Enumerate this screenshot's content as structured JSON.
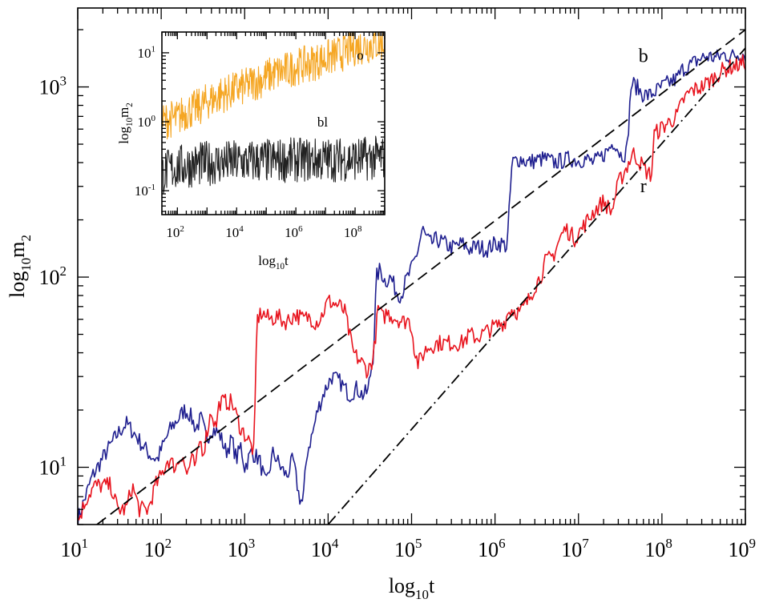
{
  "chart_data": [
    {
      "type": "line",
      "id": "main",
      "xscale": "log",
      "yscale": "log",
      "xlabel": "log10t",
      "ylabel": "log10m2",
      "xlim": [
        10,
        1000000000
      ],
      "ylim": [
        5,
        2600
      ],
      "x_ticks": [
        {
          "mantissa": "10",
          "exp": "1"
        },
        {
          "mantissa": "10",
          "exp": "2"
        },
        {
          "mantissa": "10",
          "exp": "3"
        },
        {
          "mantissa": "10",
          "exp": "4"
        },
        {
          "mantissa": "10",
          "exp": "5"
        },
        {
          "mantissa": "10",
          "exp": "6"
        },
        {
          "mantissa": "10",
          "exp": "7"
        },
        {
          "mantissa": "10",
          "exp": "8"
        },
        {
          "mantissa": "10",
          "exp": "9"
        }
      ],
      "y_ticks": [
        {
          "mantissa": "10",
          "exp": "1"
        },
        {
          "mantissa": "10",
          "exp": "2"
        },
        {
          "mantissa": "10",
          "exp": "3"
        }
      ],
      "series": [
        {
          "name": "b",
          "color": "#1f1f8f",
          "style": "solid",
          "label_at": [
            60000000,
            1350
          ],
          "points": [
            [
              10,
              5.3
            ],
            [
              15,
              9
            ],
            [
              22,
              12
            ],
            [
              30,
              15
            ],
            [
              38,
              17
            ],
            [
              48,
              15
            ],
            [
              60,
              13
            ],
            [
              75,
              11.5
            ],
            [
              90,
              11
            ],
            [
              105,
              13
            ],
            [
              130,
              16
            ],
            [
              160,
              18
            ],
            [
              190,
              20
            ],
            [
              220,
              19
            ],
            [
              260,
              16
            ],
            [
              300,
              18
            ],
            [
              350,
              14
            ],
            [
              400,
              16
            ],
            [
              500,
              15
            ],
            [
              600,
              12
            ],
            [
              700,
              14
            ],
            [
              800,
              11
            ],
            [
              900,
              13
            ],
            [
              1000,
              10
            ],
            [
              1200,
              12
            ],
            [
              1500,
              11
            ],
            [
              1800,
              8
            ],
            [
              2200,
              12
            ],
            [
              2700,
              10
            ],
            [
              3200,
              9
            ],
            [
              3800,
              11
            ],
            [
              4500,
              7
            ],
            [
              5000,
              6.5
            ],
            [
              5600,
              12
            ],
            [
              6500,
              15
            ],
            [
              7500,
              20
            ],
            [
              9000,
              25
            ],
            [
              11000,
              30
            ],
            [
              14000,
              28
            ],
            [
              18000,
              24
            ],
            [
              22000,
              26
            ],
            [
              26000,
              24
            ],
            [
              30000,
              25
            ],
            [
              35000,
              40
            ],
            [
              38000,
              100
            ],
            [
              42000,
              110
            ],
            [
              48000,
              95
            ],
            [
              56000,
              100
            ],
            [
              65000,
              85
            ],
            [
              75000,
              80
            ],
            [
              85000,
              95
            ],
            [
              100000,
              110
            ],
            [
              120000,
              140
            ],
            [
              135000,
              180
            ],
            [
              150000,
              160
            ],
            [
              170000,
              150
            ],
            [
              200000,
              158
            ],
            [
              250000,
              150
            ],
            [
              300000,
              142
            ],
            [
              400000,
              150
            ],
            [
              500000,
              140
            ],
            [
              600000,
              145
            ],
            [
              800000,
              140
            ],
            [
              1000000,
              150
            ],
            [
              1200000,
              150
            ],
            [
              1400000,
              145
            ],
            [
              1600000,
              400
            ],
            [
              2000000,
              420
            ],
            [
              2500000,
              400
            ],
            [
              3000000,
              410
            ],
            [
              4000000,
              420
            ],
            [
              5000000,
              400
            ],
            [
              6500000,
              410
            ],
            [
              8000000,
              420
            ],
            [
              10000000,
              410
            ],
            [
              12000000,
              420
            ],
            [
              15000000,
              400
            ],
            [
              18000000,
              420
            ],
            [
              22000000,
              460
            ],
            [
              27000000,
              520
            ],
            [
              32000000,
              440
            ],
            [
              38000000,
              450
            ],
            [
              43000000,
              1050
            ],
            [
              50000000,
              1000
            ],
            [
              58000000,
              920
            ],
            [
              70000000,
              900
            ],
            [
              85000000,
              950
            ],
            [
              100000000,
              1000
            ],
            [
              120000000,
              1050
            ],
            [
              150000000,
              1100
            ],
            [
              180000000,
              1250
            ],
            [
              220000000,
              1300
            ],
            [
              280000000,
              1400
            ],
            [
              350000000,
              1450
            ],
            [
              450000000,
              1420
            ],
            [
              550000000,
              1480
            ],
            [
              700000000,
              1450
            ],
            [
              850000000,
              1500
            ],
            [
              1000000000,
              1490
            ]
          ]
        },
        {
          "name": "r",
          "color": "#e8141e",
          "style": "solid",
          "label_at": [
            60000000,
            280
          ],
          "points": [
            [
              10,
              5.2
            ],
            [
              13,
              7
            ],
            [
              16,
              8
            ],
            [
              25,
              8
            ],
            [
              30,
              6
            ],
            [
              38,
              6
            ],
            [
              45,
              8
            ],
            [
              55,
              6
            ],
            [
              70,
              6
            ],
            [
              85,
              8
            ],
            [
              100,
              9
            ],
            [
              120,
              11
            ],
            [
              150,
              10
            ],
            [
              180,
              12
            ],
            [
              200,
              9
            ],
            [
              230,
              11
            ],
            [
              260,
              10
            ],
            [
              290,
              14
            ],
            [
              320,
              12
            ],
            [
              350,
              15
            ],
            [
              400,
              20
            ],
            [
              450,
              16
            ],
            [
              500,
              22
            ],
            [
              700,
              22
            ],
            [
              900,
              16
            ],
            [
              1100,
              14
            ],
            [
              1300,
              12
            ],
            [
              1400,
              60
            ],
            [
              1600,
              65
            ],
            [
              2000,
              60
            ],
            [
              2500,
              62
            ],
            [
              3000,
              58
            ],
            [
              3500,
              60
            ],
            [
              4000,
              64
            ],
            [
              5000,
              60
            ],
            [
              6000,
              62
            ],
            [
              7000,
              58
            ],
            [
              8000,
              60
            ],
            [
              10000,
              75
            ],
            [
              14000,
              70
            ],
            [
              16000,
              65
            ],
            [
              18000,
              50
            ],
            [
              20000,
              40
            ],
            [
              22000,
              38
            ],
            [
              26000,
              35
            ],
            [
              30000,
              32
            ],
            [
              35000,
              38
            ],
            [
              40000,
              70
            ],
            [
              45000,
              60
            ],
            [
              50000,
              65
            ],
            [
              60000,
              62
            ],
            [
              70000,
              60
            ],
            [
              80000,
              58
            ],
            [
              90000,
              60
            ],
            [
              100000,
              55
            ],
            [
              110000,
              40
            ],
            [
              120000,
              35
            ],
            [
              150000,
              42
            ],
            [
              200000,
              45
            ],
            [
              300000,
              45
            ],
            [
              400000,
              45
            ],
            [
              500000,
              50
            ],
            [
              600000,
              48
            ],
            [
              700000,
              50
            ],
            [
              800000,
              52
            ],
            [
              1000000,
              55
            ],
            [
              1300000,
              58
            ],
            [
              1500000,
              68
            ],
            [
              2000000,
              65
            ],
            [
              2500000,
              75
            ],
            [
              3000000,
              90
            ],
            [
              3500000,
              100
            ],
            [
              4000000,
              120
            ],
            [
              5000000,
              130
            ],
            [
              6000000,
              160
            ],
            [
              7000000,
              180
            ],
            [
              9000000,
              160
            ],
            [
              12000000,
              190
            ],
            [
              15000000,
              220
            ],
            [
              20000000,
              250
            ],
            [
              25000000,
              220
            ],
            [
              30000000,
              310
            ],
            [
              38000000,
              380
            ],
            [
              45000000,
              450
            ],
            [
              55000000,
              400
            ],
            [
              65000000,
              360
            ],
            [
              75000000,
              340
            ],
            [
              80000000,
              560
            ],
            [
              95000000,
              600
            ],
            [
              120000000,
              650
            ],
            [
              150000000,
              700
            ],
            [
              180000000,
              850
            ],
            [
              220000000,
              950
            ],
            [
              300000000,
              1000
            ],
            [
              400000000,
              1100
            ],
            [
              500000000,
              1200
            ],
            [
              600000000,
              1250
            ],
            [
              800000000,
              1300
            ],
            [
              1000000000,
              1350
            ]
          ]
        },
        {
          "name": "dashed-fit",
          "color": "#000000",
          "style": "dashed",
          "points": [
            [
              17,
              5
            ],
            [
              1000000000,
              2000
            ]
          ]
        },
        {
          "name": "dash-dot-fit",
          "color": "#000000",
          "style": "dashdot",
          "points": [
            [
              10000,
              5
            ],
            [
              1000000000,
              1600
            ]
          ]
        }
      ]
    },
    {
      "type": "line",
      "id": "inset",
      "xscale": "log",
      "yscale": "log",
      "xlabel": "log10t",
      "ylabel": "log10m2",
      "xlim": [
        30,
        1000000000
      ],
      "ylim": [
        0.045,
        20
      ],
      "x_ticks": [
        {
          "mantissa": "10",
          "exp": "2"
        },
        {
          "mantissa": "10",
          "exp": "4"
        },
        {
          "mantissa": "10",
          "exp": "6"
        },
        {
          "mantissa": "10",
          "exp": "8"
        }
      ],
      "y_ticks": [
        {
          "mantissa": "10",
          "exp": "-1"
        },
        {
          "mantissa": "10",
          "exp": "0"
        },
        {
          "mantissa": "10",
          "exp": "1"
        }
      ],
      "series": [
        {
          "name": "o",
          "color": "#f5a623",
          "style": "solid",
          "label_at": [
            150000000,
            8
          ],
          "points": [
            [
              30,
              1.0
            ],
            [
              60,
              1.1
            ],
            [
              100,
              1.1
            ],
            [
              150,
              1.3
            ],
            [
              200,
              1.4
            ],
            [
              300,
              1.5
            ],
            [
              500,
              1.6
            ],
            [
              800,
              1.8
            ],
            [
              1000,
              2.0
            ],
            [
              2000,
              2.2
            ],
            [
              3000,
              2.5
            ],
            [
              5000,
              2.6
            ],
            [
              8000,
              2.8
            ],
            [
              10000,
              3.0
            ],
            [
              20000,
              3.2
            ],
            [
              30000,
              3.6
            ],
            [
              50000,
              3.9
            ],
            [
              80000,
              4.2
            ],
            [
              100000,
              4.5
            ],
            [
              200000,
              5.0
            ],
            [
              400000,
              5.4
            ],
            [
              800000,
              6.0
            ],
            [
              1000000,
              6.3
            ],
            [
              3000000,
              7.0
            ],
            [
              8000000,
              8.0
            ],
            [
              20000000,
              9.0
            ],
            [
              50000000,
              10.5
            ],
            [
              100000000,
              12.0
            ],
            [
              300000000,
              13.0
            ],
            [
              1000000000,
              14.0
            ]
          ],
          "noise_amp": 0.55
        },
        {
          "name": "bl",
          "color": "#222222",
          "style": "solid",
          "label_at": [
            8000000,
            0.85
          ],
          "points": [
            [
              30,
              0.18
            ],
            [
              100,
              0.22
            ],
            [
              1000,
              0.25
            ],
            [
              10000,
              0.26
            ],
            [
              100000,
              0.27
            ],
            [
              1000000,
              0.28
            ],
            [
              10000000,
              0.28
            ],
            [
              100000000,
              0.29
            ],
            [
              1000000000,
              0.3
            ]
          ],
          "noise_amp": 0.65
        }
      ]
    }
  ]
}
